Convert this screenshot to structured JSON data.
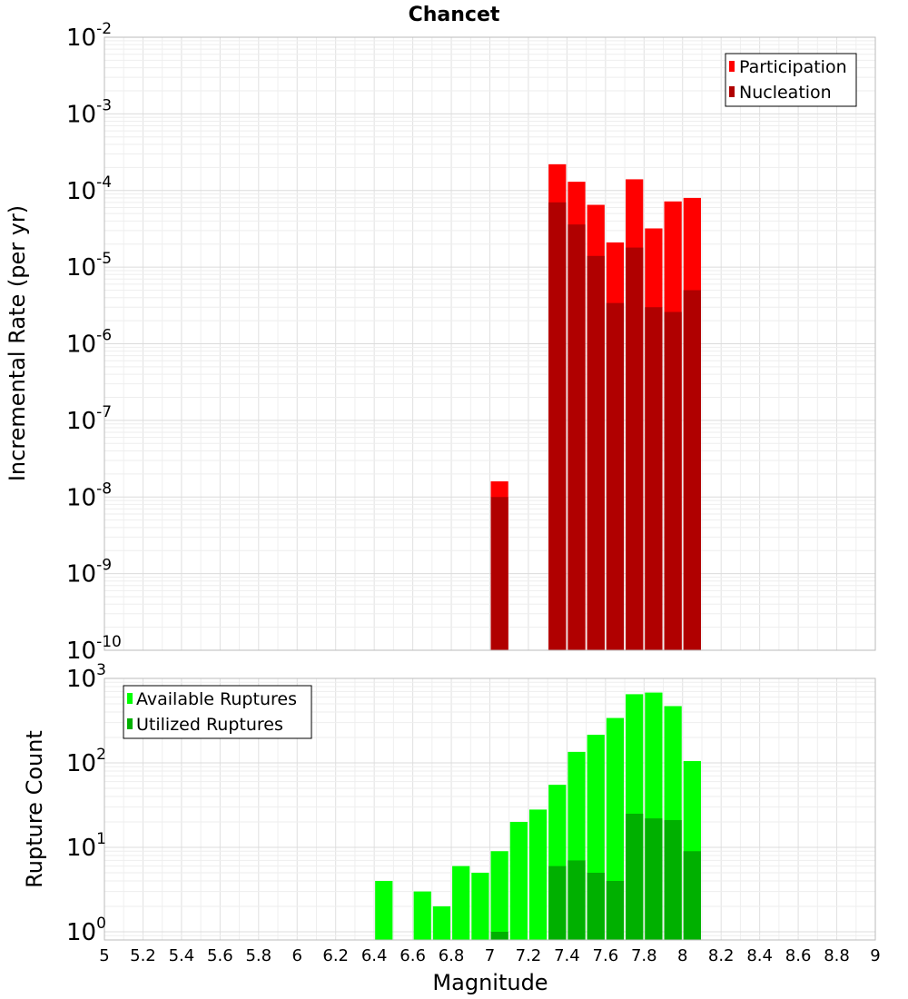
{
  "chart_data": [
    {
      "type": "bar",
      "title": "Chancet",
      "xlabel": "",
      "ylabel": "Incremental Rate (per yr)",
      "yscale": "log",
      "xlim": [
        5,
        9
      ],
      "ylim": [
        1e-10,
        0.01
      ],
      "legend_position": "top-right",
      "y_tick_base": "10",
      "y_tick_exponents": [
        "-10",
        "-9",
        "-8",
        "-7",
        "-6",
        "-5",
        "-4",
        "-3",
        "-2"
      ],
      "x": [
        7.05,
        7.35,
        7.45,
        7.55,
        7.65,
        7.75,
        7.85,
        7.95,
        8.05
      ],
      "series": [
        {
          "name": "Participation",
          "color": "#ff0000",
          "values": [
            1.6e-08,
            0.00022,
            0.00013,
            6.5e-05,
            2.1e-05,
            0.00014,
            3.2e-05,
            7.2e-05,
            8e-05
          ]
        },
        {
          "name": "Nucleation",
          "color": "#b00000",
          "values": [
            1e-08,
            7e-05,
            3.6e-05,
            1.4e-05,
            3.4e-06,
            1.8e-05,
            3e-06,
            2.6e-06,
            5e-06
          ]
        }
      ]
    },
    {
      "type": "bar",
      "title": "",
      "xlabel": "Magnitude",
      "ylabel": "Rupture Count",
      "yscale": "log",
      "xlim": [
        5,
        9
      ],
      "ylim": [
        0.8,
        1000
      ],
      "legend_position": "top-left",
      "x_tick_labels": [
        "5",
        "5.2",
        "5.4",
        "5.6",
        "5.8",
        "6",
        "6.2",
        "6.4",
        "6.6",
        "6.8",
        "7",
        "7.2",
        "7.4",
        "7.6",
        "7.8",
        "8",
        "8.2",
        "8.4",
        "8.6",
        "8.8",
        "9"
      ],
      "y_tick_base": "10",
      "y_tick_exponents": [
        "0",
        "1",
        "2",
        "3"
      ],
      "x": [
        6.45,
        6.65,
        6.75,
        6.85,
        6.95,
        7.05,
        7.15,
        7.25,
        7.35,
        7.45,
        7.55,
        7.65,
        7.75,
        7.85,
        7.95,
        8.05
      ],
      "series": [
        {
          "name": "Available Ruptures",
          "color": "#00ff00",
          "values": [
            4,
            3,
            2,
            6,
            5,
            9,
            20,
            28,
            55,
            135,
            215,
            340,
            650,
            680,
            470,
            105
          ]
        },
        {
          "name": "Utilized Ruptures",
          "color": "#00b000",
          "values": [
            0,
            0,
            0,
            0,
            0,
            1,
            0,
            0,
            6,
            7,
            5,
            4,
            25,
            22,
            21,
            9
          ]
        }
      ]
    }
  ]
}
